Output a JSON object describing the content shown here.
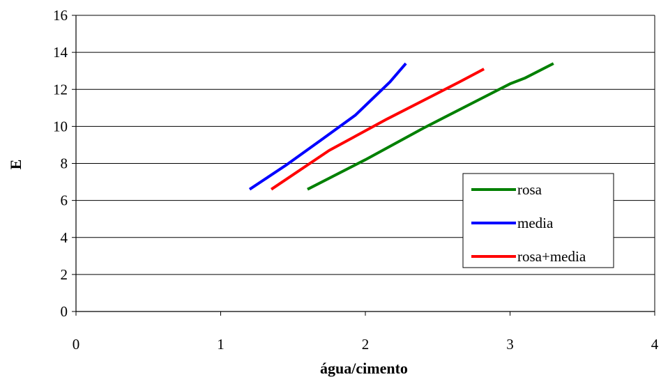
{
  "chart_data": {
    "type": "line",
    "title": "",
    "xlabel": "água/cimento",
    "ylabel": "E",
    "xlim": [
      0,
      4
    ],
    "ylim": [
      0,
      16
    ],
    "xticks": [
      0,
      1,
      2,
      3,
      4
    ],
    "yticks": [
      0,
      2,
      4,
      6,
      8,
      10,
      12,
      14,
      16
    ],
    "xtick_labels": [
      "0",
      "1",
      "2",
      "3",
      "4"
    ],
    "ytick_labels": [
      "0",
      "2",
      "4",
      "6",
      "8",
      "10",
      "12",
      "14",
      "16"
    ],
    "grid": "horizontal",
    "legend_position": "right",
    "series": [
      {
        "name": "rosa",
        "color": "#008000",
        "x": [
          1.6,
          2.0,
          2.4,
          2.8,
          3.0,
          3.1,
          3.3
        ],
        "y": [
          6.6,
          8.2,
          9.9,
          11.5,
          12.3,
          12.6,
          13.4
        ]
      },
      {
        "name": "media",
        "color": "#0000ff",
        "x": [
          1.2,
          1.45,
          1.7,
          1.93,
          2.05,
          2.17,
          2.28
        ],
        "y": [
          6.6,
          7.9,
          9.3,
          10.6,
          11.5,
          12.4,
          13.4
        ]
      },
      {
        "name": "rosa+media",
        "color": "#ff0000",
        "x": [
          1.35,
          1.75,
          2.15,
          2.5,
          2.65,
          2.82
        ],
        "y": [
          6.6,
          8.7,
          10.4,
          11.8,
          12.4,
          13.1
        ]
      }
    ]
  }
}
